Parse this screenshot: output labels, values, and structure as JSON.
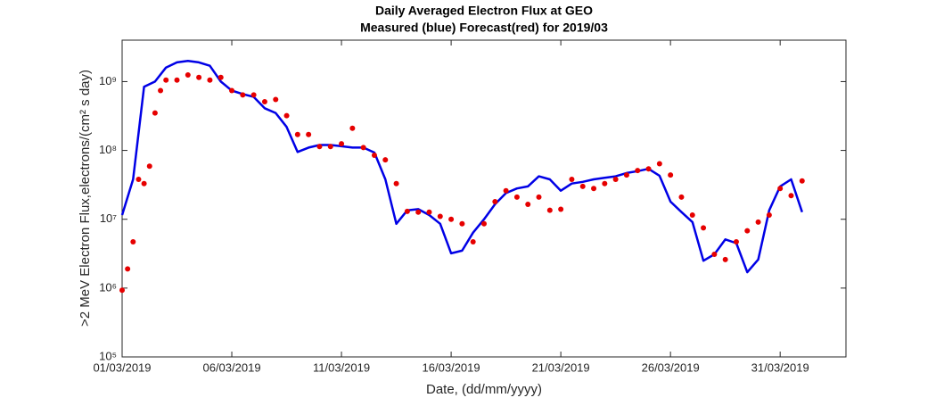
{
  "chart_data": {
    "type": "line",
    "title": "Daily Averaged Electron Flux at GEO",
    "subtitle": "Measured (blue) Forecast(red) for 2019/03",
    "xlabel": "Date, (dd/mm/yyyy)",
    "ylabel": ">2 MeV Electron Flux,electrons/(cm² s day)",
    "log_y": true,
    "xlim": [
      "2019-03-01",
      "2019-04-03"
    ],
    "xticks": [
      {
        "value": "2019-03-01",
        "label": "01/03/2019"
      },
      {
        "value": "2019-03-06",
        "label": "06/03/2019"
      },
      {
        "value": "2019-03-11",
        "label": "11/03/2019"
      },
      {
        "value": "2019-03-16",
        "label": "16/03/2019"
      },
      {
        "value": "2019-03-21",
        "label": "21/03/2019"
      },
      {
        "value": "2019-03-26",
        "label": "26/03/2019"
      },
      {
        "value": "2019-03-31",
        "label": "31/03/2019"
      }
    ],
    "ylim": [
      100000,
      4000000000
    ],
    "yticks": [
      {
        "value": 100000,
        "label": "10⁵"
      },
      {
        "value": 1000000,
        "label": "10⁶"
      },
      {
        "value": 10000000,
        "label": "10⁷"
      },
      {
        "value": 100000000,
        "label": "10⁸"
      },
      {
        "value": 1000000000,
        "label": "10⁹"
      }
    ],
    "series": [
      {
        "name": "Measured",
        "color": "#0000e6",
        "style": "line",
        "x": [
          "2019-03-01T00:00",
          "2019-03-01T12:00",
          "2019-03-02T00:00",
          "2019-03-02T12:00",
          "2019-03-03T00:00",
          "2019-03-03T12:00",
          "2019-03-04T00:00",
          "2019-03-04T12:00",
          "2019-03-05T00:00",
          "2019-03-05T12:00",
          "2019-03-06T00:00",
          "2019-03-06T12:00",
          "2019-03-07T00:00",
          "2019-03-07T12:00",
          "2019-03-08T00:00",
          "2019-03-08T12:00",
          "2019-03-09T00:00",
          "2019-03-09T12:00",
          "2019-03-10T00:00",
          "2019-03-10T12:00",
          "2019-03-11T00:00",
          "2019-03-11T12:00",
          "2019-03-12T00:00",
          "2019-03-12T12:00",
          "2019-03-13T00:00",
          "2019-03-13T12:00",
          "2019-03-14T00:00",
          "2019-03-14T12:00",
          "2019-03-15T00:00",
          "2019-03-15T12:00",
          "2019-03-16T00:00",
          "2019-03-16T12:00",
          "2019-03-17T00:00",
          "2019-03-17T12:00",
          "2019-03-18T00:00",
          "2019-03-18T12:00",
          "2019-03-19T00:00",
          "2019-03-19T12:00",
          "2019-03-20T00:00",
          "2019-03-20T12:00",
          "2019-03-21T00:00",
          "2019-03-21T12:00",
          "2019-03-22T00:00",
          "2019-03-22T12:00",
          "2019-03-23T00:00",
          "2019-03-23T12:00",
          "2019-03-24T00:00",
          "2019-03-24T12:00",
          "2019-03-25T00:00",
          "2019-03-25T12:00",
          "2019-03-26T00:00",
          "2019-03-26T12:00",
          "2019-03-27T00:00",
          "2019-03-27T12:00",
          "2019-03-28T00:00",
          "2019-03-28T12:00",
          "2019-03-29T00:00",
          "2019-03-29T12:00",
          "2019-03-30T00:00",
          "2019-03-30T12:00",
          "2019-03-31T00:00",
          "2019-03-31T12:00",
          "2019-04-01T00:00"
        ],
        "values": [
          11500000,
          38000000,
          840000000,
          1000000000,
          1600000000,
          1900000000,
          2000000000,
          1900000000,
          1700000000,
          1000000000,
          740000000,
          660000000,
          600000000,
          410000000,
          350000000,
          220000000,
          95000000,
          110000000,
          120000000,
          120000000,
          115000000,
          110000000,
          110000000,
          93000000,
          38000000,
          8600000,
          13500000,
          14000000,
          11500000,
          8600000,
          3200000,
          3500000,
          6400000,
          10000000,
          16500000,
          24000000,
          28000000,
          30000000,
          42000000,
          38000000,
          26000000,
          33000000,
          35000000,
          38000000,
          40000000,
          42000000,
          47000000,
          50000000,
          54000000,
          43000000,
          18000000,
          12700000,
          9100000,
          2500000,
          3100000,
          5100000,
          4500000,
          1700000,
          2600000,
          13500000,
          30000000,
          38000000,
          12700000
        ]
      },
      {
        "name": "Forecast",
        "color": "#e60000",
        "style": "dots",
        "x": [
          "2019-03-01T00:00",
          "2019-03-01T06:00",
          "2019-03-01T12:00",
          "2019-03-01T18:00",
          "2019-03-02T00:00",
          "2019-03-02T06:00",
          "2019-03-02T12:00",
          "2019-03-02T18:00",
          "2019-03-03T00:00",
          "2019-03-03T12:00",
          "2019-03-04T00:00",
          "2019-03-04T12:00",
          "2019-03-05T00:00",
          "2019-03-05T12:00",
          "2019-03-06T00:00",
          "2019-03-06T12:00",
          "2019-03-07T00:00",
          "2019-03-07T12:00",
          "2019-03-08T00:00",
          "2019-03-08T12:00",
          "2019-03-09T00:00",
          "2019-03-09T12:00",
          "2019-03-10T00:00",
          "2019-03-10T12:00",
          "2019-03-11T00:00",
          "2019-03-11T12:00",
          "2019-03-12T00:00",
          "2019-03-12T12:00",
          "2019-03-13T00:00",
          "2019-03-13T12:00",
          "2019-03-14T00:00",
          "2019-03-14T12:00",
          "2019-03-15T00:00",
          "2019-03-15T12:00",
          "2019-03-16T00:00",
          "2019-03-16T12:00",
          "2019-03-17T00:00",
          "2019-03-17T12:00",
          "2019-03-18T00:00",
          "2019-03-18T12:00",
          "2019-03-19T00:00",
          "2019-03-19T12:00",
          "2019-03-20T00:00",
          "2019-03-20T12:00",
          "2019-03-21T00:00",
          "2019-03-21T12:00",
          "2019-03-22T00:00",
          "2019-03-22T12:00",
          "2019-03-23T00:00",
          "2019-03-23T12:00",
          "2019-03-24T00:00",
          "2019-03-24T12:00",
          "2019-03-25T00:00",
          "2019-03-25T12:00",
          "2019-03-26T00:00",
          "2019-03-26T12:00",
          "2019-03-27T00:00",
          "2019-03-27T12:00",
          "2019-03-28T00:00",
          "2019-03-28T12:00",
          "2019-03-29T00:00",
          "2019-03-29T12:00",
          "2019-03-30T00:00",
          "2019-03-30T12:00",
          "2019-03-31T00:00",
          "2019-03-31T12:00",
          "2019-04-01T00:00"
        ],
        "values": [
          930000,
          1900000,
          4700000,
          38000000,
          33000000,
          59000000,
          350000000,
          740000000,
          1050000000,
          1050000000,
          1250000000,
          1150000000,
          1050000000,
          1150000000,
          740000000,
          640000000,
          640000000,
          510000000,
          550000000,
          320000000,
          170000000,
          170000000,
          114000000,
          114000000,
          125000000,
          210000000,
          110000000,
          85000000,
          73000000,
          33000000,
          13000000,
          12700000,
          12700000,
          11000000,
          10000000,
          8600000,
          4700000,
          8600000,
          18000000,
          26000000,
          21000000,
          16500000,
          21000000,
          13500000,
          14000000,
          38000000,
          30000000,
          28000000,
          33000000,
          38000000,
          44000000,
          51000000,
          54000000,
          64000000,
          44000000,
          21000000,
          11500000,
          7500000,
          3100000,
          2600000,
          4700000,
          6800000,
          9100000,
          11500000,
          28000000,
          22000000,
          36000000
        ]
      }
    ]
  }
}
